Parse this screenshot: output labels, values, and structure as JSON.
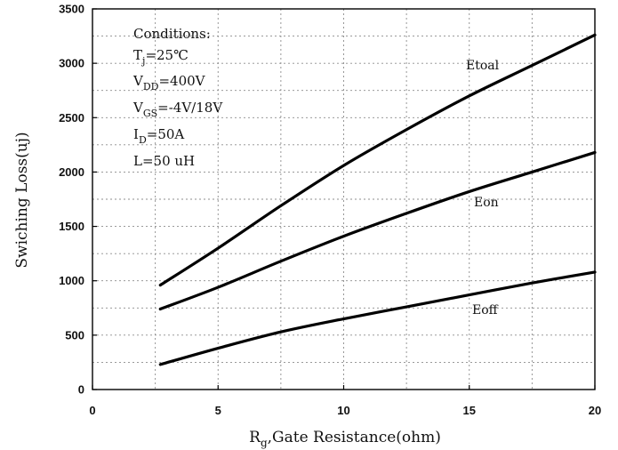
{
  "chart_data": {
    "type": "line",
    "xlabel": {
      "main": "R",
      "sub": "g",
      "rest": ",Gate Resistance(ohm)"
    },
    "ylabel": "Swiching Loss(uj)",
    "xlim": [
      0,
      20
    ],
    "ylim": [
      0,
      3500
    ],
    "xticks": [
      "0",
      "5",
      "10",
      "15",
      "20"
    ],
    "yticks": [
      "0",
      "500",
      "1000",
      "1500",
      "2000",
      "2500",
      "3000",
      "3500"
    ],
    "grid": true,
    "series": [
      {
        "name": "Etoal",
        "x": [
          2.7,
          5,
          7.5,
          10,
          12.5,
          15,
          17.5,
          20
        ],
        "y": [
          960,
          1300,
          1690,
          2060,
          2390,
          2700,
          2980,
          3260
        ]
      },
      {
        "name": "Eon",
        "x": [
          2.7,
          5,
          7.5,
          10,
          12.5,
          15,
          17.5,
          20
        ],
        "y": [
          740,
          940,
          1180,
          1410,
          1620,
          1820,
          2000,
          2180
        ]
      },
      {
        "name": "Eoff",
        "x": [
          2.7,
          5,
          7.5,
          10,
          12.5,
          15,
          17.5,
          20
        ],
        "y": [
          230,
          380,
          530,
          650,
          760,
          870,
          980,
          1080
        ]
      }
    ],
    "conditions": [
      {
        "main": "Conditions:",
        "sub": "",
        "rest": ""
      },
      {
        "main": "T",
        "sub": "j",
        "rest": "=25℃"
      },
      {
        "main": "V",
        "sub": "DD",
        "rest": "=400V"
      },
      {
        "main": "V",
        "sub": "GS",
        "rest": "=-4V/18V"
      },
      {
        "main": "I",
        "sub": "D",
        "rest": "=50A"
      },
      {
        "main": "L=50 uH",
        "sub": "",
        "rest": ""
      }
    ]
  }
}
